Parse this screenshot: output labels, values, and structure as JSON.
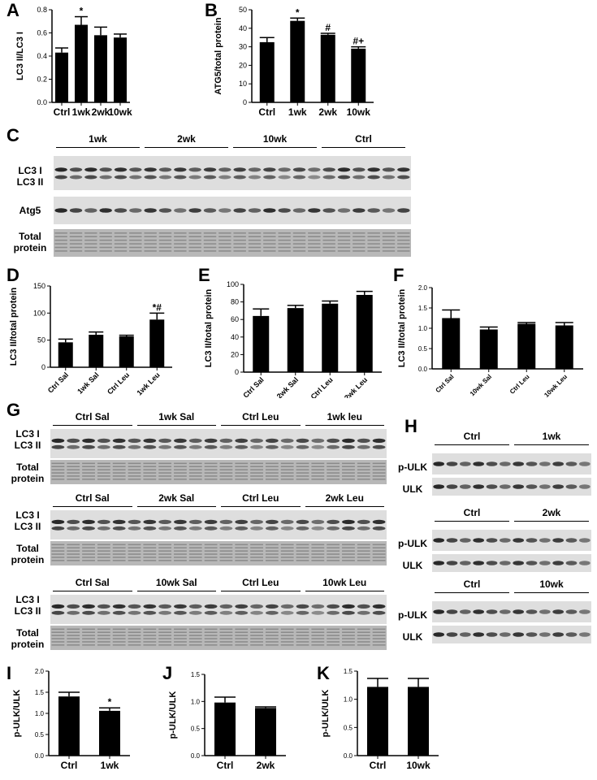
{
  "panels": {
    "A": "A",
    "B": "B",
    "C": "C",
    "D": "D",
    "E": "E",
    "F": "F",
    "G": "G",
    "H": "H",
    "I": "I",
    "J": "J",
    "K": "K"
  },
  "chart_data": [
    {
      "id": "A",
      "type": "bar",
      "categories": [
        "Ctrl",
        "1wk",
        "2wk",
        "10wk"
      ],
      "values": [
        0.43,
        0.67,
        0.58,
        0.56
      ],
      "errors": [
        0.04,
        0.07,
        0.07,
        0.03
      ],
      "ylabel": "LC3 II/LC3 I",
      "ylim": [
        0,
        0.8
      ],
      "yticks": [
        "0.0",
        "0.2",
        "0.4",
        "0.6",
        "0.8"
      ],
      "annotations": [
        "",
        "*",
        "",
        ""
      ]
    },
    {
      "id": "B",
      "type": "bar",
      "categories": [
        "Ctrl",
        "1wk",
        "2wk",
        "10wk"
      ],
      "values": [
        32.5,
        44,
        36.5,
        29
      ],
      "errors": [
        2.5,
        1.5,
        0.8,
        1
      ],
      "ylabel": "ATG5/total protein",
      "ylim": [
        0,
        50
      ],
      "yticks": [
        "0",
        "10",
        "20",
        "30",
        "40",
        "50"
      ],
      "annotations": [
        "",
        "*",
        "#",
        "#+"
      ]
    },
    {
      "id": "D",
      "type": "bar",
      "categories": [
        "Ctrl Sal",
        "1wk Sal",
        "Ctrl Leu",
        "1wk Leu"
      ],
      "values": [
        46,
        60,
        57,
        88
      ],
      "errors": [
        6,
        5,
        2,
        12
      ],
      "ylabel": "LC3 II/total protein",
      "ylim": [
        0,
        150
      ],
      "yticks": [
        "0",
        "50",
        "100",
        "150"
      ],
      "annotations": [
        "",
        "",
        "",
        "*#"
      ]
    },
    {
      "id": "E",
      "type": "bar",
      "categories": [
        "Ctrl Sal",
        "2wk Sal",
        "Ctrl Leu",
        "2wk Leu"
      ],
      "values": [
        64,
        73,
        78,
        88
      ],
      "errors": [
        8,
        3,
        3,
        4
      ],
      "ylabel": "LC3 II/total protein",
      "ylim": [
        0,
        100
      ],
      "yticks": [
        "0",
        "20",
        "40",
        "60",
        "80",
        "100"
      ],
      "annotations": [
        "",
        "",
        "",
        ""
      ]
    },
    {
      "id": "F",
      "type": "bar",
      "categories": [
        "Ctrl Sal",
        "10wk Sal",
        "Ctrl Leu",
        "10wk Leu"
      ],
      "values": [
        1.25,
        0.97,
        1.11,
        1.07
      ],
      "errors": [
        0.2,
        0.06,
        0.03,
        0.07
      ],
      "ylabel": "LC3 II/total protein",
      "ylim": [
        0,
        2.0
      ],
      "yticks": [
        "0.0",
        "0.5",
        "1.0",
        "1.5",
        "2.0"
      ],
      "annotations": [
        "",
        "",
        "",
        ""
      ]
    },
    {
      "id": "I",
      "type": "bar",
      "categories": [
        "Ctrl",
        "1wk"
      ],
      "values": [
        1.4,
        1.06
      ],
      "errors": [
        0.1,
        0.07
      ],
      "ylabel": "p-ULK/ULK",
      "ylim": [
        0,
        2.0
      ],
      "yticks": [
        "0.0",
        "0.5",
        "1.0",
        "1.5",
        "2.0"
      ],
      "annotations": [
        "",
        "*"
      ]
    },
    {
      "id": "J",
      "type": "bar",
      "categories": [
        "Ctrl",
        "2wk"
      ],
      "values": [
        0.98,
        0.88
      ],
      "errors": [
        0.1,
        0.02
      ],
      "ylabel": "p-ULK/ULK",
      "ylim": [
        0,
        1.5
      ],
      "yticks": [
        "0.0",
        "0.5",
        "1.0",
        "1.5"
      ],
      "annotations": [
        "",
        ""
      ]
    },
    {
      "id": "K",
      "type": "bar",
      "categories": [
        "Ctrl",
        "10wk"
      ],
      "values": [
        1.22,
        1.22
      ],
      "errors": [
        0.15,
        0.15
      ],
      "ylabel": "p-ULK/ULK",
      "ylim": [
        0,
        1.5
      ],
      "yticks": [
        "0.0",
        "0.5",
        "1.0",
        "1.5"
      ],
      "annotations": [
        "",
        ""
      ]
    }
  ],
  "blots": {
    "C": {
      "groups": [
        "1wk",
        "2wk",
        "10wk",
        "Ctrl"
      ],
      "rows": [
        "LC3 I\nLC3 II",
        "Atg5",
        "Total\nprotein"
      ]
    },
    "G": {
      "sets": [
        {
          "groups": [
            "Ctrl Sal",
            "1wk Sal",
            "Ctrl Leu",
            "1wk leu"
          ],
          "rows": [
            "LC3 I\nLC3 II",
            "Total\nprotein"
          ]
        },
        {
          "groups": [
            "Ctrl Sal",
            "2wk Sal",
            "Ctrl Leu",
            "2wk Leu"
          ],
          "rows": [
            "LC3 I\nLC3 II",
            "Total\nprotein"
          ]
        },
        {
          "groups": [
            "Ctrl Sal",
            "10wk Sal",
            "Ctrl Leu",
            "10wk Leu"
          ],
          "rows": [
            "LC3 I\nLC3 II",
            "Total\nprotein"
          ]
        }
      ]
    },
    "H": {
      "sets": [
        {
          "groups": [
            "Ctrl",
            "1wk"
          ],
          "rows": [
            "p-ULK",
            "ULK"
          ]
        },
        {
          "groups": [
            "Ctrl",
            "2wk"
          ],
          "rows": [
            "p-ULK",
            "ULK"
          ]
        },
        {
          "groups": [
            "Ctrl",
            "10wk"
          ],
          "rows": [
            "p-ULK",
            "ULK"
          ]
        }
      ]
    }
  }
}
